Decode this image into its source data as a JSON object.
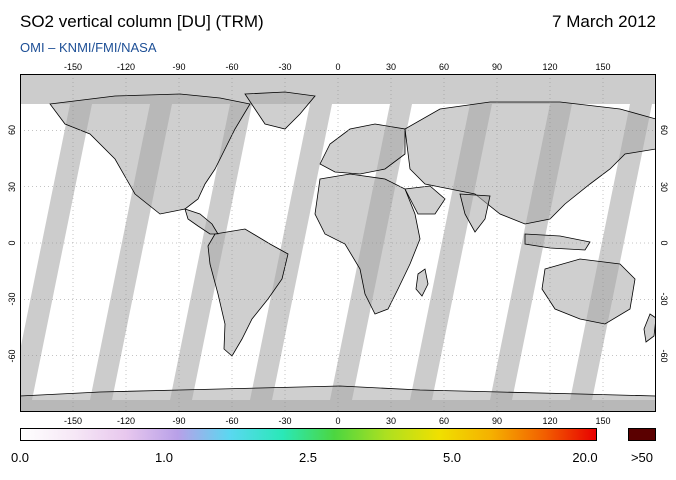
{
  "header": {
    "title": "SO2 vertical column [DU] (TRM)",
    "date": "7 March 2012",
    "credit": "OMI  –  KNMI/FMI/NASA"
  },
  "map": {
    "projection": "equirectangular",
    "lon_range": [
      -180,
      180
    ],
    "lat_range": [
      -90,
      90
    ],
    "lon_ticks": [
      -150,
      -120,
      -90,
      -60,
      -30,
      0,
      30,
      60,
      90,
      120,
      150
    ],
    "lat_ticks": [
      60,
      30,
      0,
      -30,
      -60
    ],
    "gridlines": true,
    "no_data_color": "#cccccc",
    "land_shade_color": "#a8a8a8",
    "coast_color": "#000000"
  },
  "colorbar": {
    "labels": [
      "0.0",
      "1.0",
      "2.5",
      "5.0",
      "20.0"
    ],
    "overflow_label": ">50",
    "overflow_color": "#5a0000",
    "stops": [
      "#ffffff",
      "#f6e8f6",
      "#e8c8ee",
      "#b8a0e8",
      "#5ad8f0",
      "#2ae8b8",
      "#4cd640",
      "#aee020",
      "#f0e000",
      "#f5b000",
      "#f26000",
      "#e80000"
    ]
  }
}
